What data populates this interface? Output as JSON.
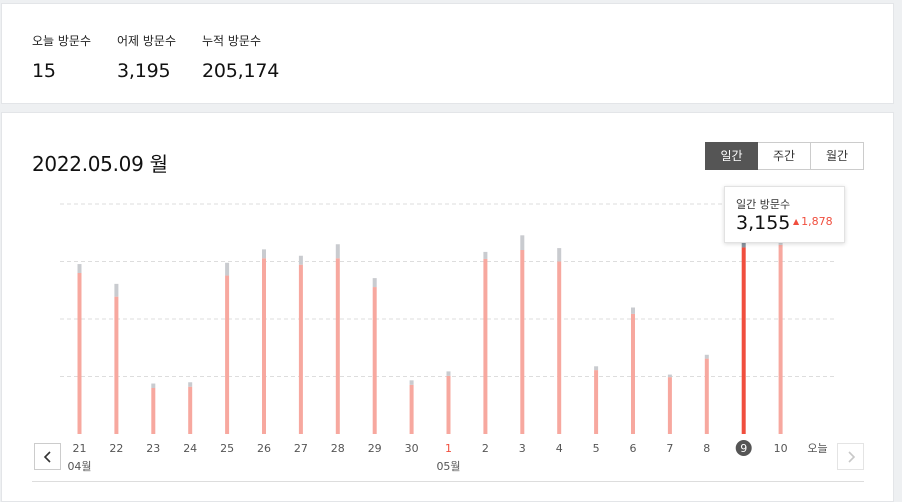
{
  "summary": {
    "today": {
      "label": "오늘 방문수",
      "value": "15"
    },
    "yesterday": {
      "label": "어제 방문수",
      "value": "3,195"
    },
    "total": {
      "label": "누적 방문수",
      "value": "205,174"
    }
  },
  "header": {
    "date": "2022.05.09 월"
  },
  "period_tabs": [
    {
      "label": "일간",
      "active": true
    },
    {
      "label": "주간",
      "active": false
    },
    {
      "label": "월간",
      "active": false
    }
  ],
  "tooltip": {
    "label": "일간 방문수",
    "value": "3,155",
    "delta": "1,878"
  },
  "chart_data": {
    "type": "bar",
    "categories": [
      "21",
      "22",
      "23",
      "24",
      "25",
      "26",
      "27",
      "28",
      "29",
      "30",
      "1",
      "2",
      "3",
      "4",
      "5",
      "6",
      "7",
      "8",
      "9",
      "10",
      "오늘"
    ],
    "month_labels": [
      {
        "at": "21",
        "label": "04월"
      },
      {
        "at": "1",
        "label": "05월"
      }
    ],
    "ylim": [
      0,
      3600
    ],
    "grid": true,
    "selected": "9",
    "series": [
      {
        "values": [
          2520,
          2150,
          720,
          740,
          2480,
          2750,
          2650,
          2750,
          2300,
          770,
          910,
          2740,
          2880,
          2700,
          1000,
          1880,
          890,
          1180,
          2920,
          2960,
          0
        ]
      },
      {
        "values": [
          140,
          200,
          70,
          70,
          200,
          140,
          140,
          220,
          140,
          70,
          70,
          110,
          230,
          210,
          60,
          100,
          40,
          60,
          235,
          240,
          0
        ]
      }
    ],
    "colors": {
      "bar": "#f7a89f",
      "bar_selected": "#f04e3e",
      "cap": "#c9cbcf",
      "cap_selected": "#8b939e",
      "grid": "#dddddd"
    }
  }
}
